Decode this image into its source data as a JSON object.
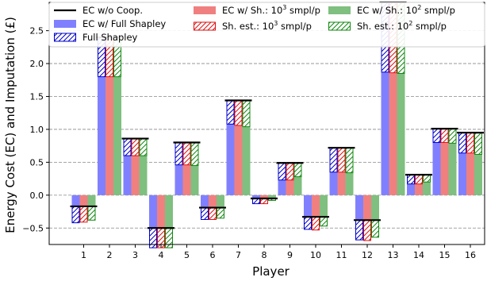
{
  "chart_data": {
    "type": "bar",
    "xlabel": "Player",
    "ylabel": "Energy Cost (EC) and Imputation (£)",
    "categories": [
      "1",
      "2",
      "3",
      "4",
      "5",
      "6",
      "7",
      "8",
      "9",
      "10",
      "11",
      "12",
      "13",
      "14",
      "15",
      "16"
    ],
    "ylim": [
      -0.75,
      2.93
    ],
    "yticks": [
      -0.5,
      0.0,
      0.5,
      1.0,
      1.5,
      2.0,
      2.5
    ],
    "ytick_labels": [
      "−0.5",
      "0.0",
      "0.5",
      "1.0",
      "1.5",
      "2.0",
      "2.5"
    ],
    "grid": "horizontal dashed",
    "legend_position": "top",
    "legend": [
      {
        "label": "EC w/o Coop.",
        "style": "line",
        "color": "#000000"
      },
      {
        "label": "EC w/ Full Shapley",
        "style": "solid",
        "color": "#8080ff"
      },
      {
        "label": "Full Shapley",
        "style": "hatch",
        "color": "#0000cc"
      },
      {
        "label": "EC w/ Sh.: 10",
        "sup": "3",
        "tail": " smpl/p",
        "style": "solid",
        "color": "#f08080"
      },
      {
        "label": "Sh. est.: 10",
        "sup": "3",
        "tail": " smpl/p",
        "style": "hatch",
        "color": "#dd1111"
      },
      {
        "label": "EC w/ Sh.: 10",
        "sup": "2",
        "tail": " smpl/p",
        "style": "solid",
        "color": "#7fbf7f"
      },
      {
        "label": "Sh. est.: 10",
        "sup": "2",
        "tail": " smpl/p",
        "style": "hatch",
        "color": "#118811"
      }
    ],
    "series": [
      {
        "name": "EC w/o Coop.",
        "values": [
          -0.17,
          2.4,
          0.86,
          -0.5,
          0.8,
          -0.19,
          1.44,
          -0.05,
          0.49,
          -0.33,
          0.72,
          -0.38,
          2.93,
          0.31,
          1.01,
          0.95
        ]
      },
      {
        "name": "EC w/ Full Shapley",
        "values": [
          -0.42,
          1.8,
          0.6,
          -0.8,
          0.46,
          -0.37,
          1.08,
          -0.13,
          0.23,
          -0.52,
          0.35,
          -0.68,
          1.87,
          0.17,
          0.8,
          0.64
        ]
      },
      {
        "name": "EC w/ Sh.: 10^3 smpl/p",
        "values": [
          -0.41,
          1.8,
          0.6,
          -0.8,
          0.46,
          -0.37,
          1.06,
          -0.13,
          0.23,
          -0.53,
          0.35,
          -0.69,
          1.86,
          0.17,
          0.8,
          0.64
        ]
      },
      {
        "name": "EC w/ Sh.: 10^2 smpl/p",
        "values": [
          -0.38,
          1.8,
          0.6,
          -0.8,
          0.45,
          -0.35,
          1.04,
          -0.08,
          0.28,
          -0.47,
          0.34,
          -0.64,
          1.85,
          0.2,
          0.79,
          0.62
        ]
      }
    ],
    "colors": {
      "baseline": "#000000",
      "full_fill": "#8080ff",
      "full_hatch": "#0000cc",
      "s3_fill": "#f08080",
      "s3_hatch": "#dd1111",
      "s2_fill": "#7fbf7f",
      "s2_hatch": "#118811"
    }
  }
}
